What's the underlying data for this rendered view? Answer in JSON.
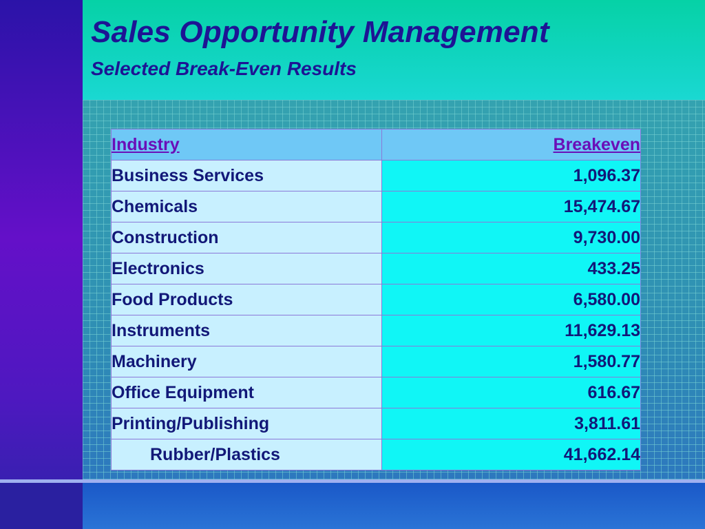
{
  "slide": {
    "title": "Sales Opportunity Management",
    "subtitle": "Selected Break-Even Results"
  },
  "table": {
    "columns": [
      "Industry",
      "Breakeven"
    ],
    "rows": [
      {
        "industry": "Business Services",
        "breakeven": "1,096.37"
      },
      {
        "industry": "Chemicals",
        "breakeven": "15,474.67"
      },
      {
        "industry": "Construction",
        "breakeven": "9,730.00"
      },
      {
        "industry": "Electronics",
        "breakeven": "433.25"
      },
      {
        "industry": "Food Products",
        "breakeven": "6,580.00"
      },
      {
        "industry": "Instruments",
        "breakeven": "11,629.13"
      },
      {
        "industry": "Machinery",
        "breakeven": "1,580.77"
      },
      {
        "industry": "Office Equipment",
        "breakeven": "616.67"
      },
      {
        "industry": "Printing/Publishing",
        "breakeven": "3,811.61"
      },
      {
        "industry": "Rubber/Plastics",
        "breakeven": "41,662.14"
      }
    ]
  },
  "colors": {
    "title_text": "#1d1494",
    "header_text": "#6a0fb8",
    "header_bg": "#6fc8f6",
    "industry_cell_bg": "#c8f0ff",
    "value_cell_bg": "#10f6f6"
  }
}
